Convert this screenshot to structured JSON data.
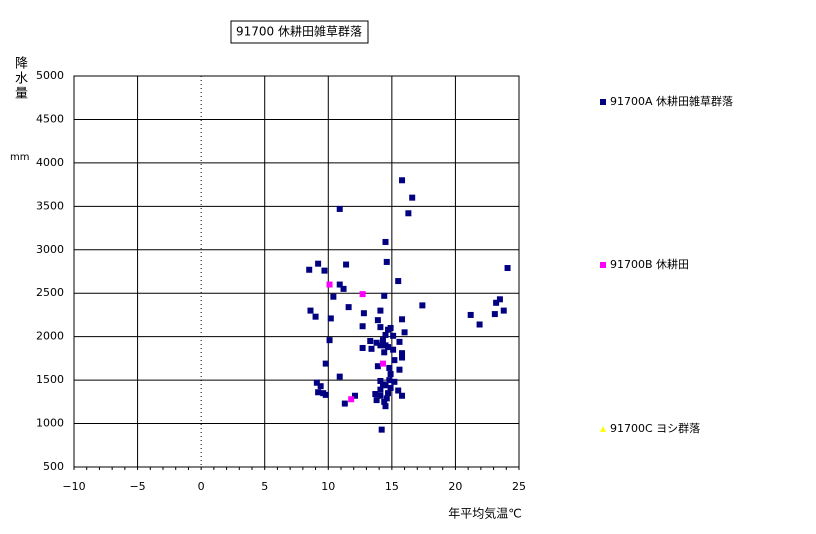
{
  "chart_data": {
    "type": "scatter",
    "title": "91700 休耕田雑草群落",
    "x_label": "年平均気温℃",
    "y_label": "降水量",
    "y_unit": "mm",
    "xlim": [
      -10,
      25
    ],
    "xticks": [
      {
        "value": -10,
        "label": "−10"
      },
      {
        "value": -5,
        "label": "−5"
      },
      0,
      5,
      10,
      15,
      20,
      25
    ],
    "ylim": [
      500,
      5000
    ],
    "yticks": [
      500,
      1000,
      1500,
      2000,
      2500,
      3000,
      3500,
      4000,
      4500,
      5000
    ],
    "grid": true,
    "legend": "right",
    "series": [
      {
        "name": "91700A 休耕田雑草群落",
        "color": "#000080",
        "x": [
          15.8,
          16.6,
          16.3,
          10.9,
          14.5,
          14.6,
          9.2,
          11.4,
          9.7,
          8.5,
          24.1,
          15.5,
          10.9,
          11.2,
          14.4,
          10.4,
          23.5,
          23.2,
          17.4,
          11.6,
          8.6,
          23.8,
          14.1,
          12.8,
          21.2,
          23.1,
          9,
          10.2,
          15.8,
          13.9,
          21.9,
          12.7,
          14.1,
          14.9,
          16,
          14.5,
          15.1,
          10.1,
          13.3,
          13.8,
          15.6,
          14.1,
          14.7,
          12.7,
          13.4,
          15.1,
          14.4,
          15.8,
          15.8,
          15.2,
          9.8,
          13.9,
          14.8,
          15.6,
          14.9,
          10.9,
          14.1,
          15.2,
          9.1,
          14.5,
          9.4,
          14.9,
          14.1,
          9.2,
          15.5,
          9.8,
          13.7,
          14.7,
          12.1,
          15.8,
          13.8,
          14.4,
          11.3,
          14.5,
          14.2,
          14.3,
          14.6,
          14.1,
          14.8,
          14.3,
          14.7,
          14.5,
          9.6
        ],
        "values": [
          3800,
          3600,
          3420,
          3470,
          3090,
          2860,
          2840,
          2830,
          2760,
          2770,
          2790,
          2640,
          2600,
          2550,
          2470,
          2460,
          2430,
          2390,
          2360,
          2340,
          2300,
          2300,
          2300,
          2270,
          2250,
          2260,
          2230,
          2210,
          2200,
          2190,
          2140,
          2120,
          2110,
          2100,
          2050,
          2020,
          2010,
          1960,
          1950,
          1930,
          1940,
          1900,
          1880,
          1870,
          1860,
          1850,
          1820,
          1810,
          1760,
          1730,
          1690,
          1660,
          1640,
          1620,
          1570,
          1540,
          1490,
          1480,
          1470,
          1440,
          1430,
          1410,
          1390,
          1360,
          1380,
          1330,
          1340,
          1350,
          1320,
          1320,
          1270,
          1250,
          1230,
          1200,
          930,
          1450,
          1290,
          1320,
          1500,
          1960,
          2080,
          1900,
          1350
        ]
      },
      {
        "name": "91700B 休耕田",
        "color": "#ff00ff",
        "x": [
          10.1,
          12.7,
          14.3,
          11.8
        ],
        "values": [
          2600,
          2490,
          1690,
          1280
        ]
      },
      {
        "name": "91700C ヨシ群落",
        "color": "#ffff00",
        "x": [],
        "values": []
      }
    ]
  }
}
